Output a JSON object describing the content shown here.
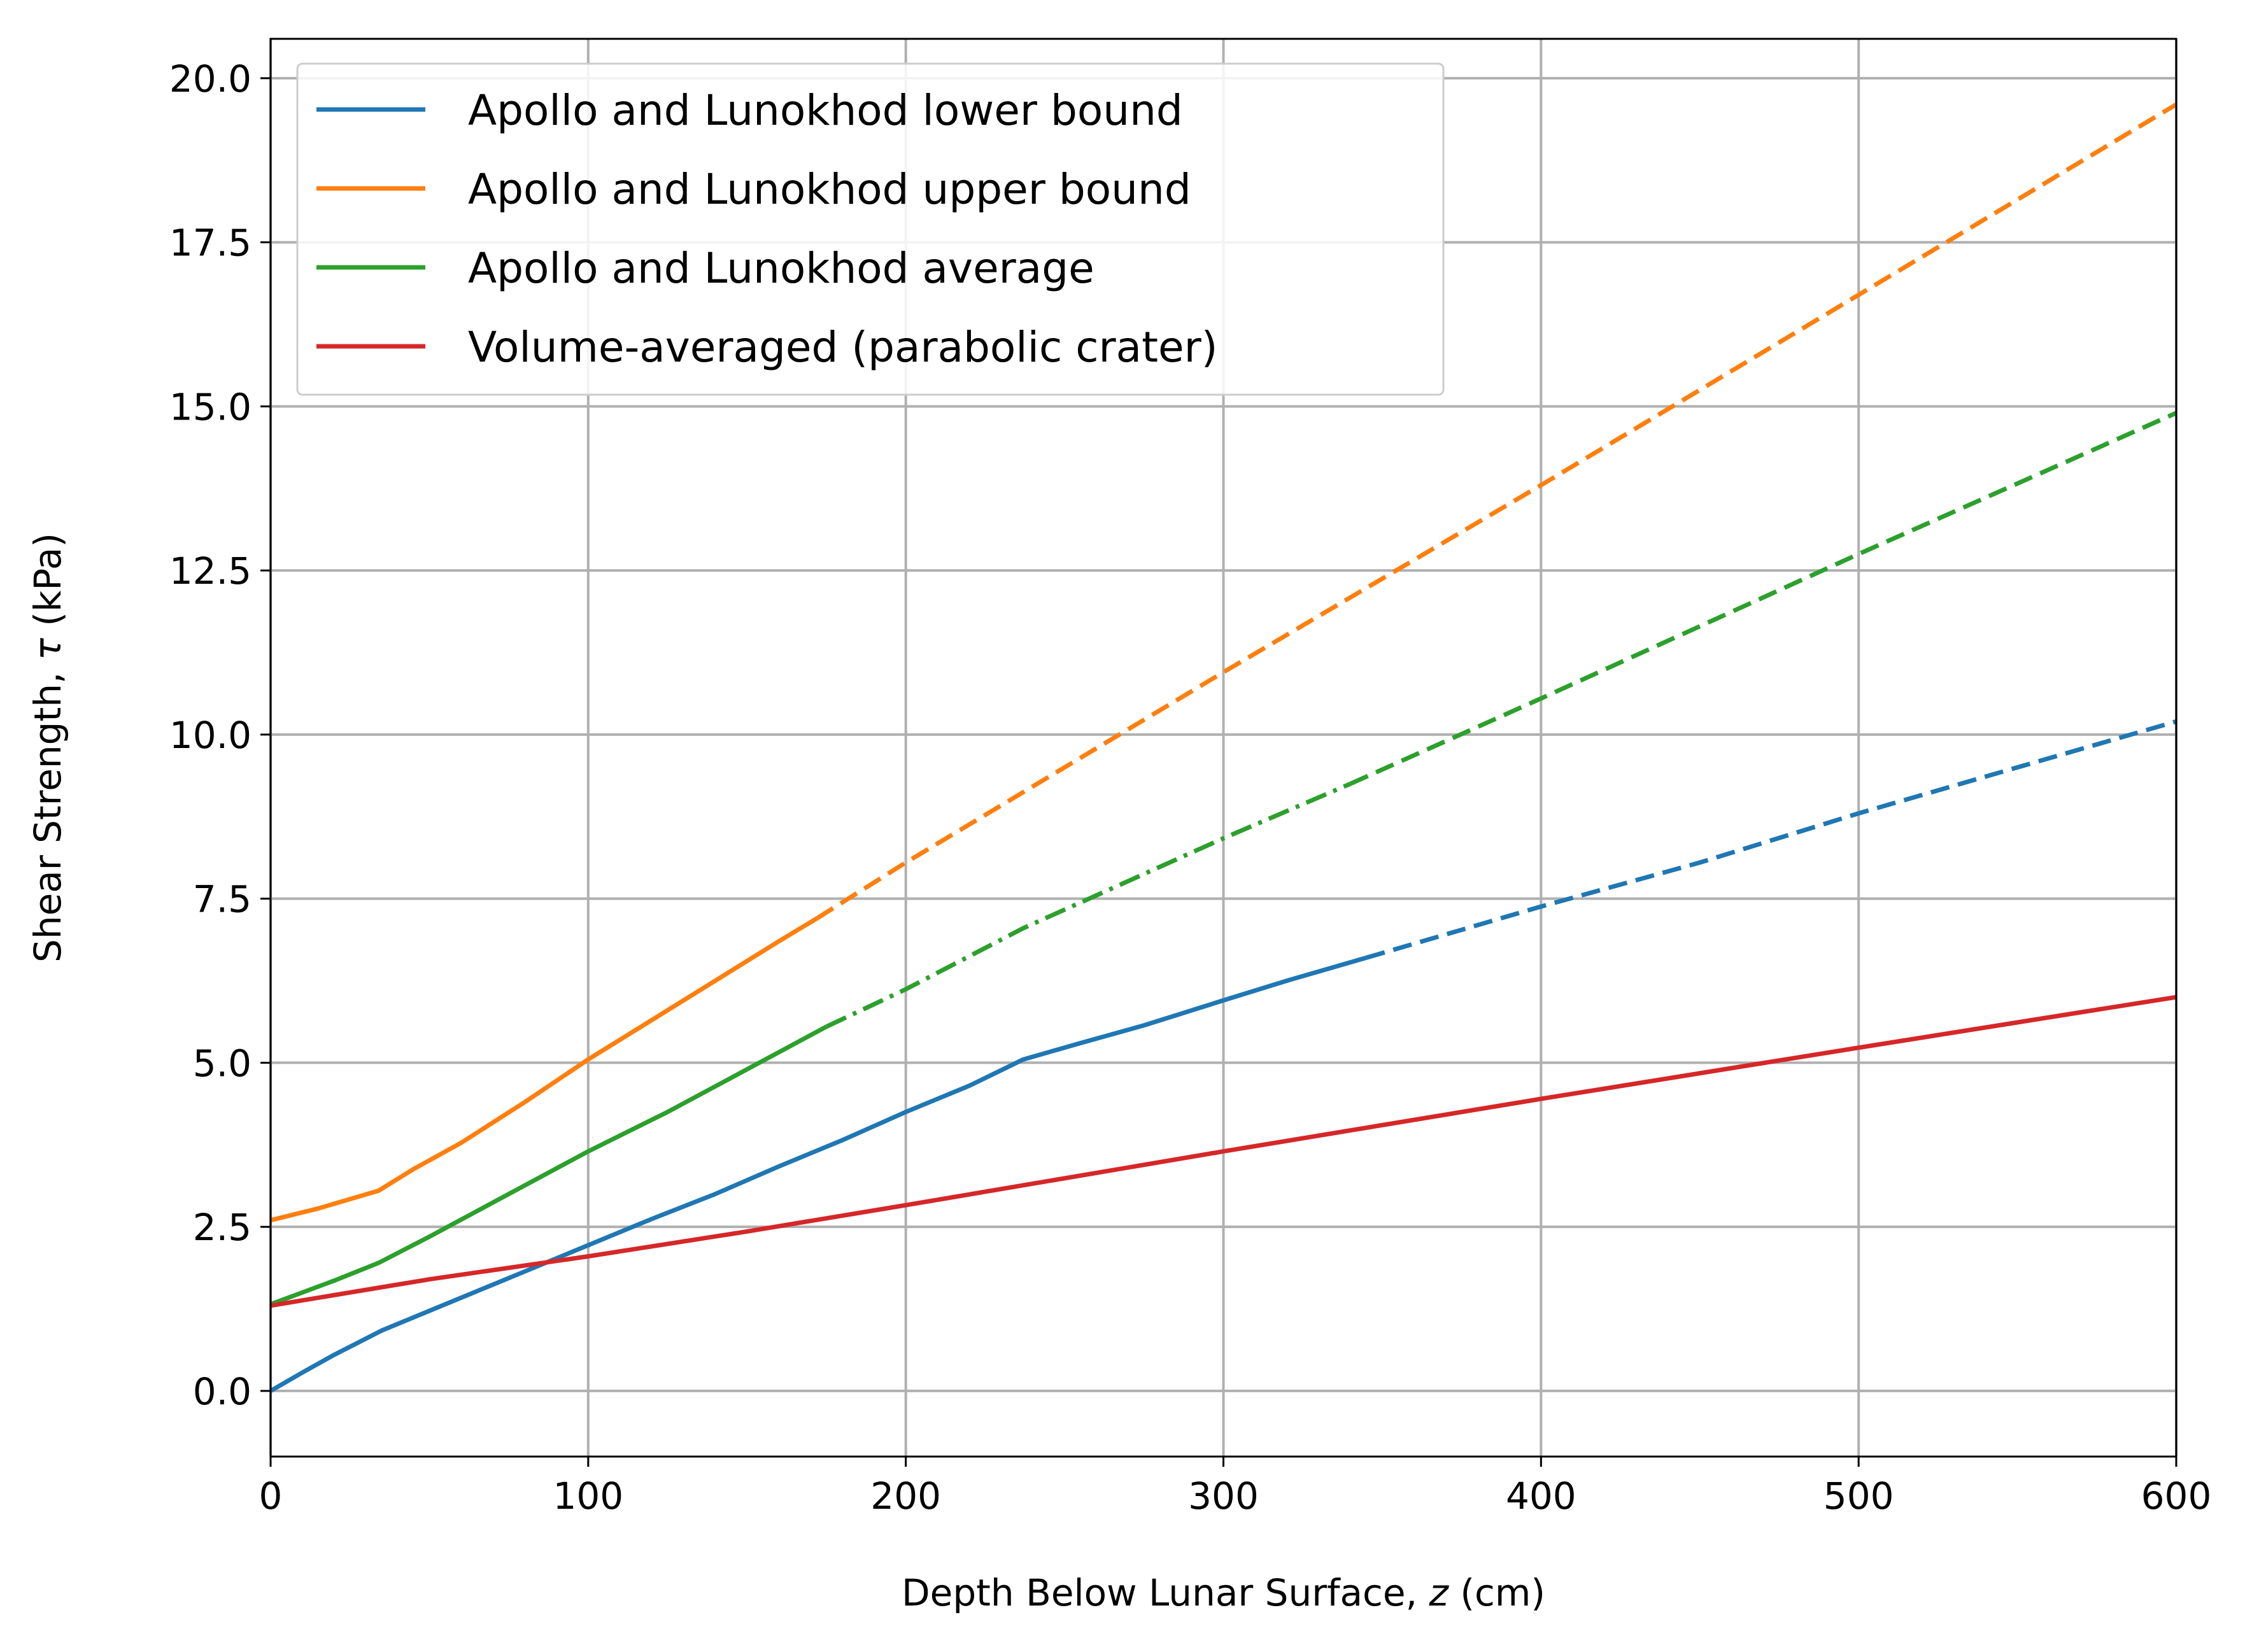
{
  "chart_data": {
    "type": "line",
    "title": "",
    "xlabel": {
      "prefix": "Depth Below Lunar Surface, ",
      "var": "z",
      "suffix": " (cm)"
    },
    "ylabel": {
      "prefix": "Shear Strength, ",
      "var": "τ",
      "suffix": " (kPa)"
    },
    "xlim": [
      0,
      600
    ],
    "ylim": [
      -1.0,
      20.6
    ],
    "xticks": [
      0,
      100,
      200,
      300,
      400,
      500,
      600
    ],
    "xtick_labels": [
      "0",
      "100",
      "200",
      "300",
      "400",
      "500",
      "600"
    ],
    "yticks": [
      0,
      2.5,
      5,
      7.5,
      10,
      12.5,
      15,
      17.5,
      20
    ],
    "ytick_labels": [
      "0.0",
      "2.5",
      "5.0",
      "7.5",
      "10.0",
      "12.5",
      "15.0",
      "17.5",
      "20.0"
    ],
    "grid": true,
    "legend_position": "top-left",
    "series": [
      {
        "name": "Apollo and Lunokhod lower bound",
        "color": "#1f77b4",
        "segments": [
          {
            "style": "solid",
            "points": [
              [
                0,
                0.0
              ],
              [
                10,
                0.28
              ],
              [
                20,
                0.55
              ],
              [
                35,
                0.92
              ],
              [
                45,
                1.12
              ],
              [
                60,
                1.42
              ],
              [
                80,
                1.82
              ],
              [
                100,
                2.22
              ],
              [
                120,
                2.62
              ],
              [
                140,
                3.0
              ],
              [
                160,
                3.42
              ],
              [
                180,
                3.82
              ],
              [
                200,
                4.25
              ],
              [
                220,
                4.65
              ],
              [
                237,
                5.05
              ],
              [
                255,
                5.3
              ],
              [
                275,
                5.57
              ],
              [
                300,
                5.95
              ],
              [
                320,
                6.25
              ],
              [
                345,
                6.6
              ]
            ]
          },
          {
            "style": "dashed",
            "points": [
              [
                345,
                6.6
              ],
              [
                400,
                7.38
              ],
              [
                450,
                8.05
              ],
              [
                500,
                8.8
              ],
              [
                550,
                9.5
              ],
              [
                600,
                10.2
              ]
            ]
          }
        ]
      },
      {
        "name": "Apollo and Lunokhod upper bound",
        "color": "#ff7f0e",
        "segments": [
          {
            "style": "solid",
            "points": [
              [
                0,
                2.6
              ],
              [
                15,
                2.78
              ],
              [
                34,
                3.05
              ],
              [
                45,
                3.38
              ],
              [
                60,
                3.78
              ],
              [
                80,
                4.4
              ],
              [
                100,
                5.05
              ],
              [
                120,
                5.65
              ],
              [
                140,
                6.25
              ],
              [
                160,
                6.85
              ],
              [
                172,
                7.2
              ]
            ]
          },
          {
            "style": "dashed",
            "points": [
              [
                172,
                7.2
              ],
              [
                200,
                8.05
              ],
              [
                300,
                10.95
              ],
              [
                400,
                13.8
              ],
              [
                500,
                16.7
              ],
              [
                600,
                19.6
              ]
            ]
          }
        ]
      },
      {
        "name": "Apollo and Lunokhod average",
        "color": "#2ca02c",
        "segments": [
          {
            "style": "solid",
            "points": [
              [
                0,
                1.32
              ],
              [
                20,
                1.68
              ],
              [
                34,
                1.95
              ],
              [
                50,
                2.35
              ],
              [
                75,
                3.0
              ],
              [
                100,
                3.65
              ],
              [
                125,
                4.25
              ],
              [
                150,
                4.9
              ],
              [
                175,
                5.55
              ]
            ]
          },
          {
            "style": "dashdot",
            "points": [
              [
                175,
                5.55
              ],
              [
                200,
                6.12
              ],
              [
                237,
                7.05
              ],
              [
                260,
                7.55
              ],
              [
                300,
                8.42
              ],
              [
                340,
                9.25
              ]
            ]
          },
          {
            "style": "dashed",
            "points": [
              [
                340,
                9.25
              ],
              [
                400,
                10.55
              ],
              [
                500,
                12.75
              ],
              [
                600,
                14.9
              ]
            ]
          }
        ]
      },
      {
        "name": "Volume-averaged (parabolic crater)",
        "color": "#d62728",
        "segments": [
          {
            "style": "solid",
            "points": [
              [
                0,
                1.3
              ],
              [
                50,
                1.7
              ],
              [
                100,
                2.05
              ],
              [
                150,
                2.43
              ],
              [
                200,
                2.83
              ],
              [
                300,
                3.65
              ],
              [
                400,
                4.45
              ],
              [
                500,
                5.23
              ],
              [
                600,
                6.0
              ]
            ]
          }
        ]
      }
    ]
  }
}
